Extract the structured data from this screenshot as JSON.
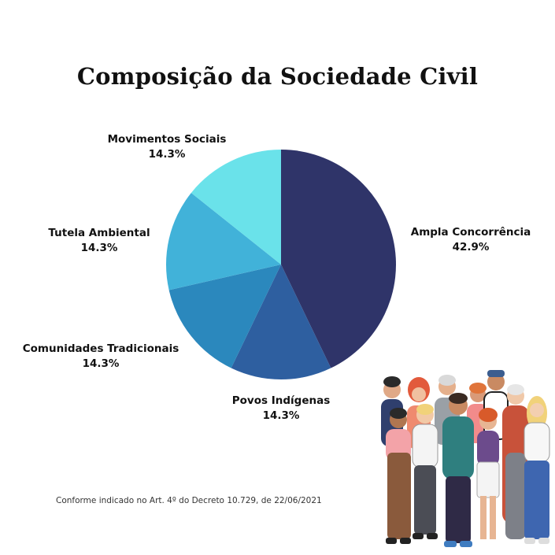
{
  "title": "Composição da Sociedade Civil",
  "footnote": "Conforme indicado no Art. 4º do Decreto 10.729, de 22/06/2021",
  "illustration": {
    "icon": "group-of-people-illustration"
  },
  "chart_data": {
    "type": "pie",
    "title": "Composição da Sociedade Civil",
    "slices": [
      {
        "label": "Ampla Concorrência",
        "value": 42.9,
        "value_label": "42.9%",
        "color": "#2f3469"
      },
      {
        "label": "Povos Indígenas",
        "value": 14.3,
        "value_label": "14.3%",
        "color": "#2e5fa0"
      },
      {
        "label": "Comunidades Tradicionais",
        "value": 14.3,
        "value_label": "14.3%",
        "color": "#2b88bd"
      },
      {
        "label": "Tutela Ambiental",
        "value": 14.3,
        "value_label": "14.3%",
        "color": "#41b2d9"
      },
      {
        "label": "Movimentos Sociais",
        "value": 14.3,
        "value_label": "14.3%",
        "color": "#6ae2ea"
      }
    ],
    "start_angle": "12 o'clock",
    "direction": "clockwise",
    "legend": "none (labels beside slices)"
  }
}
